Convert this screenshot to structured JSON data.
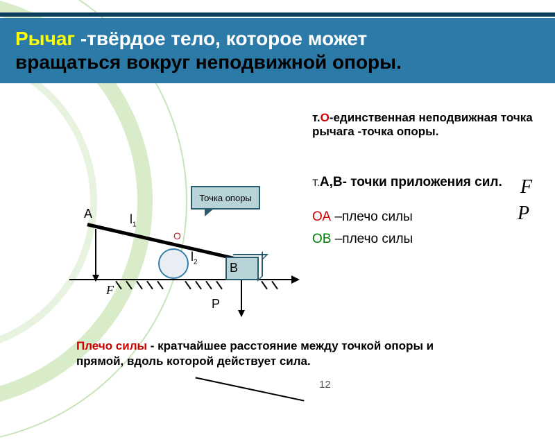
{
  "colors": {
    "header_bg": "#2b7aa8",
    "top_band": "#0d3d5c",
    "ring_outer": "#c9e4b7",
    "ring_mid": "#d9ecc9",
    "ring_inner": "#e8f3df",
    "title_highlight": "#ffff00",
    "title_text": "#ffffff",
    "red": "#cc0000",
    "green": "#008000",
    "fulcrum_stroke": "#367da8",
    "box_fill": "#b8d4d9",
    "box_stroke": "#2a5a6e"
  },
  "title": {
    "highlight": "Рычаг",
    "line1_rest": " -твёрдое тело, которое может",
    "line2": "вращаться вокруг неподвижной опоры."
  },
  "text": {
    "pivot_prefix": "т.",
    "pivot_letter": "О",
    "pivot_desc": "-единственная неподвижная точка рычага -точка опоры.",
    "ab_prefix": "Т.",
    "ab_letters": "А,В-",
    "ab_desc": " точки приложения сил.",
    "oa_label": "ОА",
    "oa_desc": " –плечо  силы",
    "ob_label": "ОВ",
    "ob_desc": " –плечо силы",
    "F": "F",
    "P": "P"
  },
  "diagram": {
    "label_A": "А",
    "label_B": "В",
    "label_O": "О",
    "label_F": "F",
    "label_P": "Р",
    "label_l1": "l",
    "label_l1_sub": "1",
    "label_l2": "l",
    "label_l2_sub": "2",
    "tooltip": "Точка опоры",
    "hatch_positions": [
      75,
      90,
      105,
      120,
      135,
      175,
      190,
      205,
      220,
      285,
      300
    ]
  },
  "footer": {
    "term": "Плечо силы",
    "def": " - кратчайшее расстояние между точкой опоры и прямой, вдоль которой  действует  сила."
  },
  "slide_number": "12"
}
